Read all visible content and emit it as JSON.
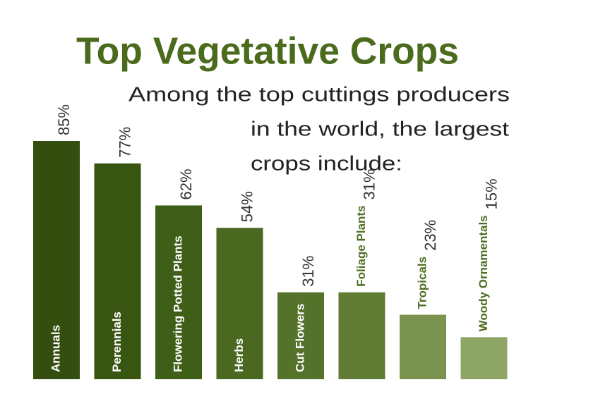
{
  "chart_data": {
    "type": "bar",
    "title": "Top Vegetative Crops",
    "subtitle": [
      "Among the top cuttings producers",
      "in the world, the largest",
      "crops include:"
    ],
    "categories": [
      "Annuals",
      "Perennials",
      "Flowering Potted Plants",
      "Herbs",
      "Cut Flowers",
      "Foliage Plants",
      "Tropicals",
      "Woody Ornamentals"
    ],
    "values": [
      85,
      77,
      62,
      54,
      31,
      31,
      23,
      15
    ],
    "value_labels": [
      "85%",
      "77%",
      "62%",
      "54%",
      "31%",
      "31%",
      "23%",
      "15%"
    ],
    "colors": [
      "#334e0f",
      "#395512",
      "#3f5e17",
      "#4a6820",
      "#55722a",
      "#617d34",
      "#7a944f",
      "#8ea665"
    ],
    "grid": false
  }
}
